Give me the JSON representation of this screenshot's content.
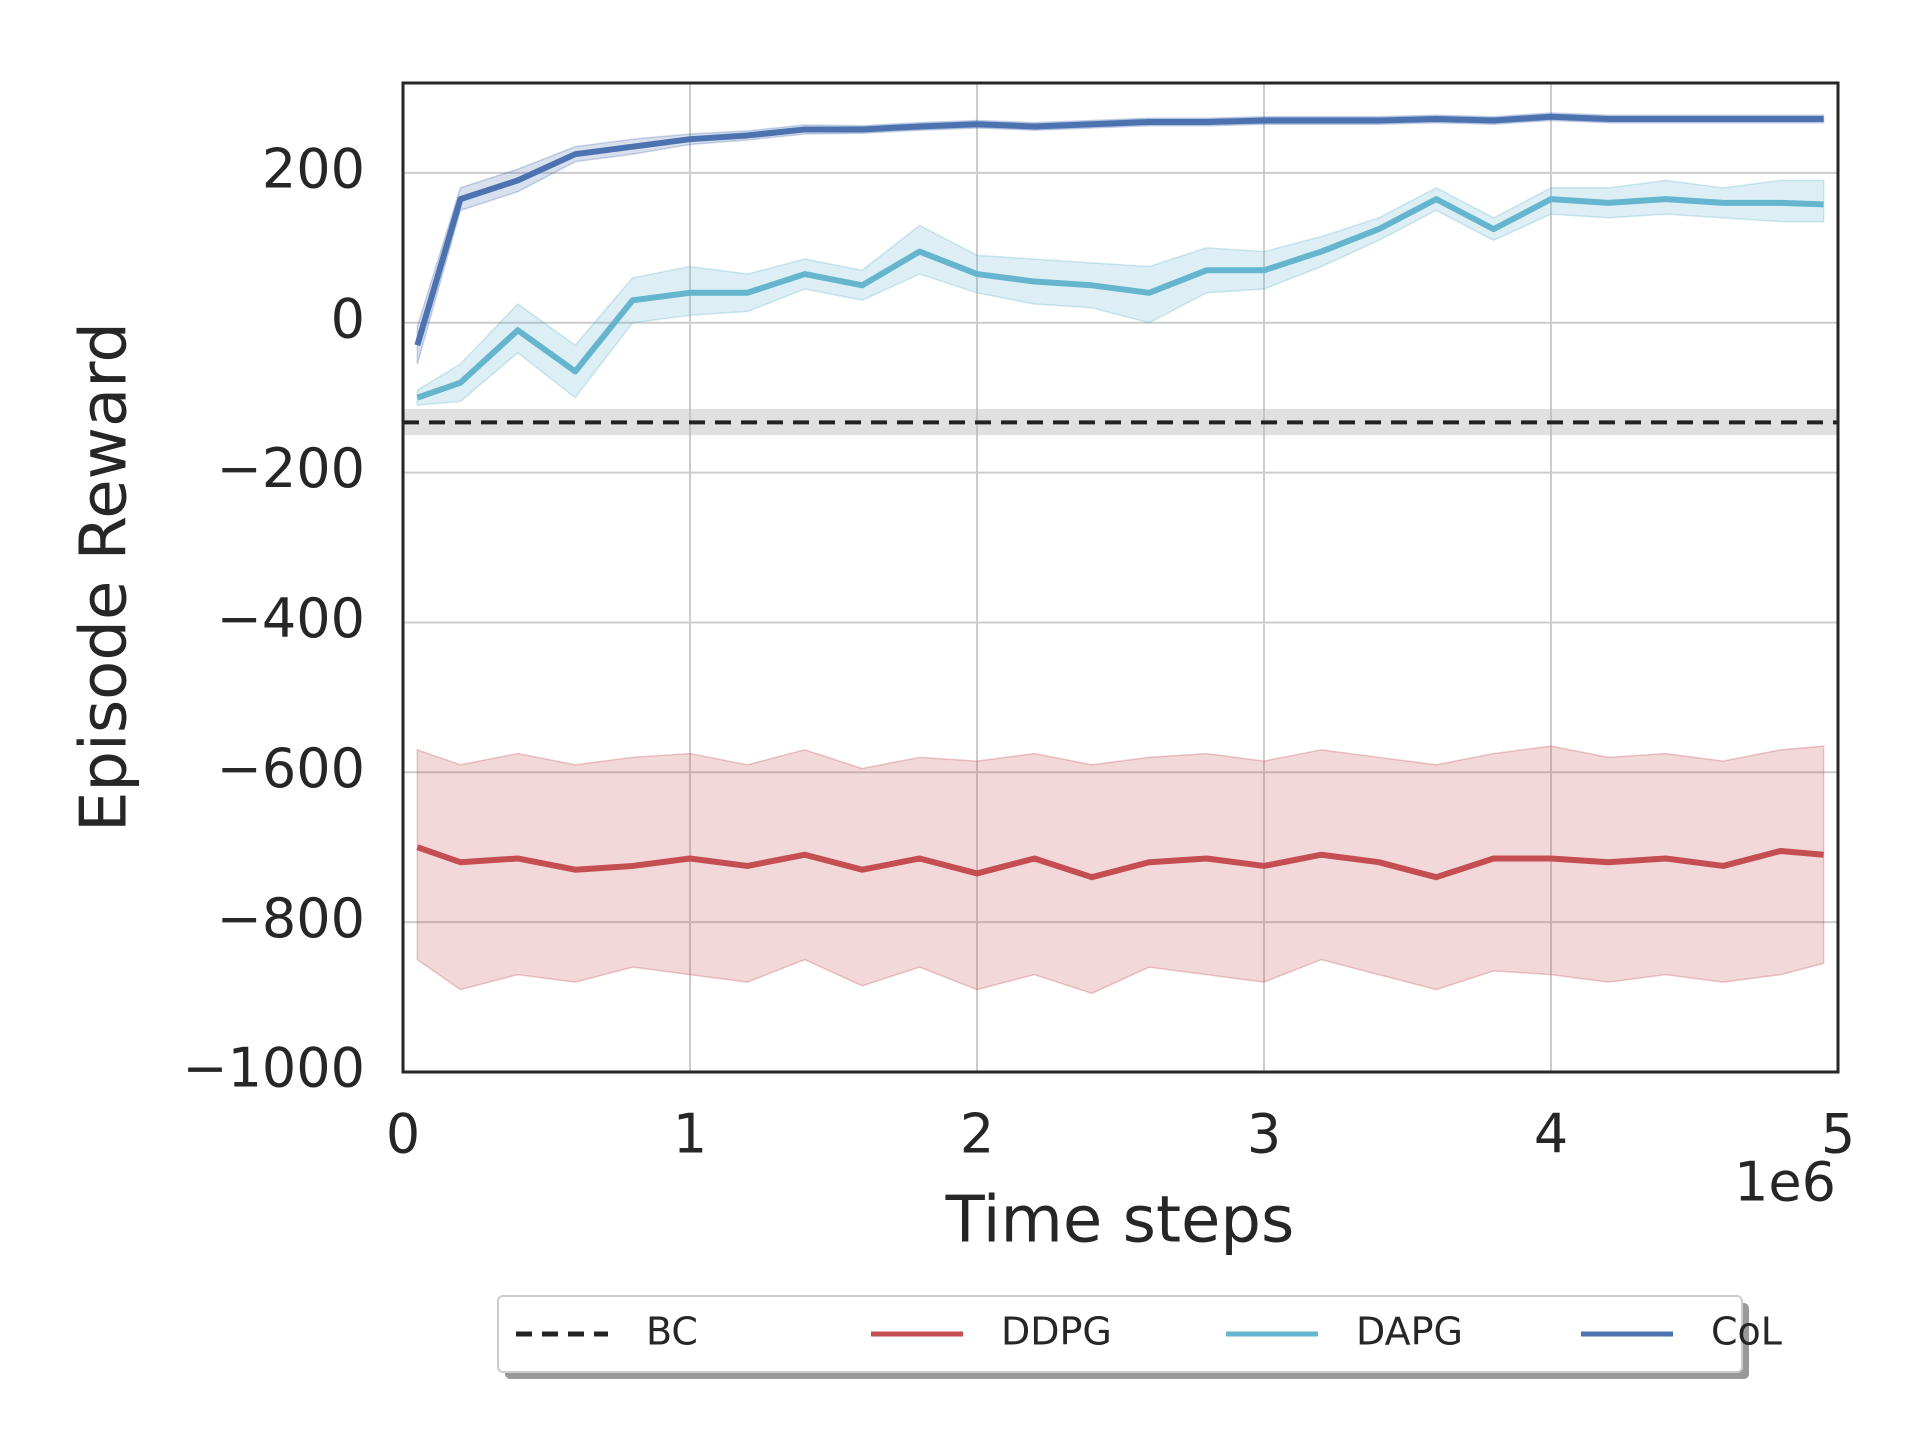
{
  "chart_data": {
    "type": "line",
    "xlabel": "Time steps",
    "ylabel": "Episode Reward",
    "x_offset_label": "1e6",
    "xlim": [
      0,
      5
    ],
    "xticks": [
      0,
      1,
      2,
      3,
      4,
      5
    ],
    "ylim": [
      -1000,
      320
    ],
    "yticks": [
      {
        "value": -1000,
        "label": "−1000"
      },
      {
        "value": -800,
        "label": "−800"
      },
      {
        "value": -600,
        "label": "−600"
      },
      {
        "value": -400,
        "label": "−400"
      },
      {
        "value": -200,
        "label": "−200"
      },
      0,
      200
    ],
    "grid": true,
    "legend": "below",
    "x": [
      0.05,
      0.2,
      0.4,
      0.6,
      0.8,
      1.0,
      1.2,
      1.4,
      1.6,
      1.8,
      2.0,
      2.2,
      2.4,
      2.6,
      2.8,
      3.0,
      3.2,
      3.4,
      3.6,
      3.8,
      4.0,
      4.2,
      4.4,
      4.6,
      4.8,
      4.95
    ],
    "series": [
      {
        "name": "BC",
        "color": "#222222",
        "dashed": true,
        "value": -133,
        "lower": -150,
        "upper": -115
      },
      {
        "name": "DDPG",
        "color": "#c44e52",
        "values": [
          -700,
          -720,
          -715,
          -730,
          -725,
          -715,
          -725,
          -710,
          -730,
          -715,
          -735,
          -715,
          -740,
          -720,
          -715,
          -725,
          -710,
          -720,
          -740,
          -715,
          -715,
          -720,
          -715,
          -725,
          -705,
          -710
        ],
        "lower": [
          -850,
          -890,
          -870,
          -880,
          -860,
          -870,
          -880,
          -850,
          -885,
          -860,
          -890,
          -870,
          -895,
          -860,
          -870,
          -880,
          -850,
          -870,
          -890,
          -865,
          -870,
          -880,
          -870,
          -880,
          -870,
          -855
        ],
        "upper": [
          -570,
          -590,
          -575,
          -590,
          -580,
          -575,
          -590,
          -570,
          -595,
          -580,
          -585,
          -575,
          -590,
          -580,
          -575,
          -585,
          -570,
          -580,
          -590,
          -575,
          -565,
          -580,
          -575,
          -585,
          -570,
          -565
        ]
      },
      {
        "name": "DAPG",
        "color": "#64b5cd",
        "values": [
          -100,
          -80,
          -10,
          -65,
          30,
          40,
          40,
          65,
          50,
          95,
          65,
          55,
          50,
          40,
          70,
          70,
          95,
          125,
          165,
          125,
          165,
          160,
          165,
          160,
          160,
          158
        ],
        "lower": [
          -110,
          -105,
          -40,
          -100,
          0,
          10,
          15,
          45,
          30,
          65,
          40,
          25,
          20,
          0,
          40,
          45,
          75,
          110,
          150,
          110,
          145,
          140,
          145,
          140,
          135,
          135
        ],
        "upper": [
          -90,
          -55,
          25,
          -30,
          60,
          75,
          65,
          85,
          70,
          130,
          90,
          85,
          80,
          75,
          100,
          95,
          115,
          140,
          180,
          140,
          180,
          180,
          190,
          180,
          190,
          190
        ]
      },
      {
        "name": "CoL",
        "color": "#4c72b0",
        "values": [
          -30,
          165,
          190,
          225,
          235,
          245,
          250,
          258,
          258,
          262,
          265,
          262,
          265,
          268,
          268,
          270,
          270,
          270,
          272,
          270,
          275,
          272,
          272,
          272,
          272,
          272
        ],
        "lower": [
          -55,
          150,
          175,
          215,
          225,
          238,
          244,
          252,
          253,
          257,
          260,
          257,
          260,
          263,
          263,
          265,
          265,
          265,
          267,
          265,
          270,
          267,
          267,
          267,
          267,
          267
        ],
        "upper": [
          -5,
          180,
          205,
          235,
          245,
          252,
          256,
          264,
          263,
          267,
          270,
          267,
          270,
          273,
          273,
          275,
          275,
          275,
          277,
          275,
          280,
          277,
          277,
          277,
          277,
          277
        ]
      }
    ]
  }
}
